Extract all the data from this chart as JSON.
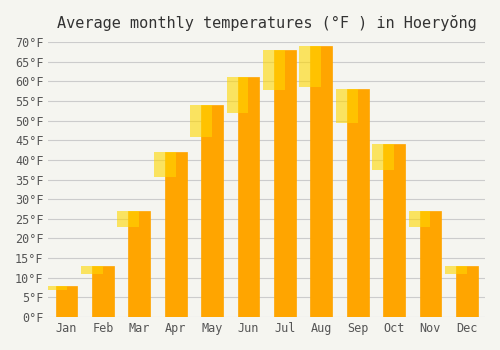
{
  "title": "Average monthly temperatures (°F ) in Hoeryŏng",
  "months": [
    "Jan",
    "Feb",
    "Mar",
    "Apr",
    "May",
    "Jun",
    "Jul",
    "Aug",
    "Sep",
    "Oct",
    "Nov",
    "Dec"
  ],
  "values": [
    8,
    13,
    27,
    42,
    54,
    61,
    68,
    69,
    58,
    44,
    27,
    13
  ],
  "bar_color": "#FFA500",
  "bar_color_top": "#FFD700",
  "ylim": [
    0,
    70
  ],
  "yticks": [
    0,
    5,
    10,
    15,
    20,
    25,
    30,
    35,
    40,
    45,
    50,
    55,
    60,
    65,
    70
  ],
  "background_color": "#f5f5f0",
  "grid_color": "#cccccc",
  "title_fontsize": 11,
  "tick_fontsize": 8.5,
  "font_family": "monospace"
}
